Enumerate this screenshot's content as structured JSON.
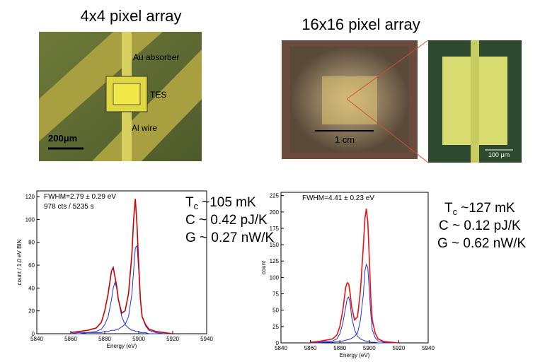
{
  "left": {
    "title": "4x4 pixel array",
    "photo_labels": [
      "Au absorber",
      "TES",
      "Al wire"
    ],
    "scale_bar": "200μm",
    "spectrum": {
      "annotations": [
        "FWHM=2.79 ± 0.29 eV",
        "978 cts / 5235 s"
      ],
      "xlabel": "Energy (eV)",
      "ylabel": "count / 1.0 eV BIN",
      "xlim": [
        5840,
        5940
      ],
      "xticks": [
        5840,
        5860,
        5880,
        5900,
        5920,
        5940
      ],
      "ylim": [
        0,
        125
      ],
      "yticks": [
        0,
        20,
        40,
        60,
        80,
        100,
        120
      ],
      "x": [
        5860,
        5865,
        5870,
        5875,
        5878,
        5880,
        5882,
        5884,
        5885,
        5886,
        5887,
        5888,
        5890,
        5892,
        5894,
        5896,
        5897,
        5898,
        5899,
        5900,
        5901,
        5902,
        5904,
        5906,
        5910,
        5915,
        5920
      ],
      "series": [
        {
          "color": "#cc0000",
          "values": [
            1,
            2,
            3,
            5,
            10,
            20,
            35,
            55,
            58,
            50,
            42,
            30,
            18,
            20,
            35,
            70,
            100,
            118,
            95,
            60,
            30,
            15,
            8,
            4,
            2,
            1,
            0
          ]
        },
        {
          "color": "#2233dd",
          "values": [
            0,
            1,
            1,
            2,
            4,
            8,
            15,
            30,
            40,
            45,
            40,
            30,
            15,
            8,
            5,
            3,
            3,
            2,
            2,
            2,
            1,
            1,
            1,
            0,
            0,
            0,
            0
          ]
        },
        {
          "color": "#2233dd",
          "values": [
            0,
            0,
            1,
            1,
            1,
            2,
            2,
            3,
            3,
            3,
            4,
            4,
            6,
            8,
            15,
            35,
            55,
            75,
            77,
            55,
            30,
            15,
            7,
            3,
            1,
            0,
            0
          ]
        }
      ]
    },
    "params": {
      "symbol": "T",
      "subscript": "c",
      "rest": "~105 mK",
      "lines": [
        "C ~ 0.42 pJ/K",
        "G ~ 0.27 nW/K"
      ]
    }
  },
  "right": {
    "title": "16x16 pixel array",
    "scale_bar": "1 cm",
    "inset_scale": "100 μm",
    "spectrum": {
      "annotations": [
        "FWHM=4.41 ± 0.23 eV"
      ],
      "xlabel": "Energy (eV)",
      "ylabel": "count",
      "xlim": [
        5840,
        5940
      ],
      "xticks": [
        5840,
        5860,
        5880,
        5900,
        5920,
        5940
      ],
      "ylim": [
        0,
        230
      ],
      "yticks": [
        0,
        25,
        50,
        75,
        100,
        125,
        150,
        175,
        200,
        225
      ],
      "x": [
        5860,
        5865,
        5870,
        5875,
        5878,
        5880,
        5882,
        5884,
        5885,
        5886,
        5887,
        5888,
        5890,
        5892,
        5894,
        5896,
        5897,
        5898,
        5899,
        5900,
        5901,
        5902,
        5904,
        5906,
        5910,
        5915,
        5920
      ],
      "series": [
        {
          "color": "#ee1111",
          "values": [
            1,
            2,
            4,
            6,
            12,
            25,
            50,
            85,
            92,
            90,
            75,
            55,
            35,
            40,
            80,
            150,
            190,
            205,
            185,
            130,
            70,
            35,
            15,
            6,
            2,
            1,
            0
          ]
        },
        {
          "color": "#2233dd",
          "values": [
            0,
            1,
            2,
            3,
            6,
            14,
            30,
            55,
            68,
            70,
            60,
            40,
            20,
            10,
            6,
            4,
            3,
            3,
            2,
            2,
            1,
            1,
            1,
            0,
            0,
            0,
            0
          ]
        },
        {
          "color": "#2233dd",
          "values": [
            0,
            0,
            1,
            1,
            2,
            2,
            3,
            4,
            5,
            5,
            6,
            7,
            10,
            15,
            35,
            75,
            110,
            120,
            115,
            80,
            45,
            20,
            8,
            3,
            1,
            0,
            0
          ]
        }
      ]
    },
    "params": {
      "symbol": "T",
      "subscript": "c",
      "rest": "~127 mK",
      "lines": [
        "C ~ 0.12 pJ/K",
        "G ~ 0.62 nW/K"
      ]
    }
  }
}
